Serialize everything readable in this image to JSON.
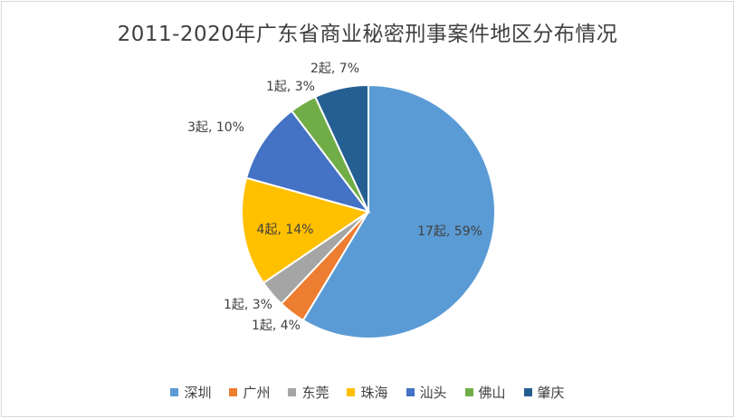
{
  "chart_data": {
    "type": "pie",
    "title": "2011-2020年广东省商业秘密刑事案件地区分布情况",
    "categories": [
      "深圳",
      "广州",
      "东莞",
      "珠海",
      "汕头",
      "佛山",
      "肇庆"
    ],
    "values": [
      17,
      1,
      1,
      4,
      3,
      1,
      2
    ],
    "data_labels": [
      "17起, 59%",
      "1起, 4%",
      "1起, 3%",
      "4起, 14%",
      "3起, 10%",
      "1起, 3%",
      "2起, 7%"
    ],
    "colors": [
      "#5b9bd5",
      "#ed7d31",
      "#a5a5a5",
      "#ffc000",
      "#4472c4",
      "#70ad47",
      "#255e91"
    ],
    "legend_position": "bottom"
  }
}
